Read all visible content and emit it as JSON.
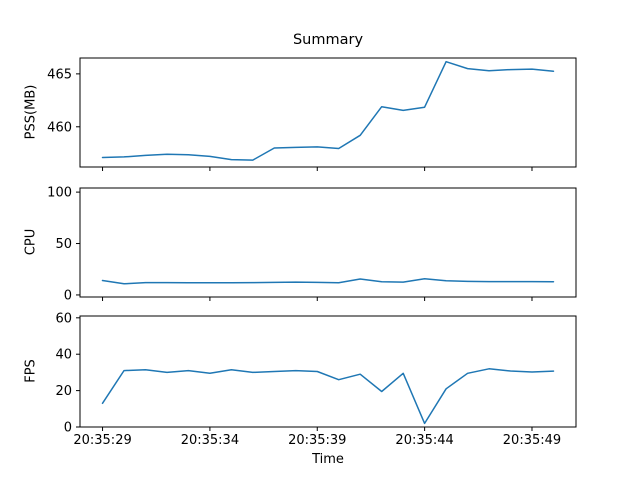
{
  "figure": {
    "title": "Summary",
    "xlabel": "Time"
  },
  "chart_data": {
    "type": "line",
    "title": "Summary",
    "xlabel": "Time",
    "line_color": "#1f77b4",
    "axes_color": "#000000",
    "background_color": "#ffffff",
    "x_unit": "seconds after 20:35:00, one sample per second",
    "x": [
      29,
      30,
      31,
      32,
      33,
      34,
      35,
      36,
      37,
      38,
      39,
      40,
      41,
      42,
      43,
      44,
      45,
      46,
      47,
      48,
      49,
      50
    ],
    "x_times": [
      "20:35:29",
      "20:35:30",
      "20:35:31",
      "20:35:32",
      "20:35:33",
      "20:35:34",
      "20:35:35",
      "20:35:36",
      "20:35:37",
      "20:35:38",
      "20:35:39",
      "20:35:40",
      "20:35:41",
      "20:35:42",
      "20:35:43",
      "20:35:44",
      "20:35:45",
      "20:35:46",
      "20:35:47",
      "20:35:48",
      "20:35:49",
      "20:35:50"
    ],
    "xlim": [
      27.95,
      51.05
    ],
    "x_tick_values": [
      29,
      34,
      39,
      44,
      49
    ],
    "x_tick_labels": [
      "20:35:29",
      "20:35:34",
      "20:35:39",
      "20:35:44",
      "20:35:49"
    ],
    "subplots": [
      {
        "name": "pss",
        "ylabel": "PSS(MB)",
        "ylim": [
          456.2,
          466.5
        ],
        "yticks": [
          460,
          465
        ],
        "values": [
          457.1,
          457.15,
          457.3,
          457.4,
          457.35,
          457.2,
          456.9,
          456.85,
          458.0,
          458.05,
          458.1,
          457.95,
          459.2,
          461.9,
          461.55,
          461.85,
          466.15,
          465.5,
          465.3,
          465.4,
          465.45,
          465.25
        ]
      },
      {
        "name": "cpu",
        "ylabel": "CPU",
        "ylim": [
          -2,
          104
        ],
        "yticks": [
          0,
          50,
          100
        ],
        "values": [
          14,
          10.8,
          12,
          12,
          11.8,
          11.8,
          11.8,
          12,
          12.2,
          12.5,
          12.2,
          11.8,
          15.5,
          12.8,
          12.5,
          15.8,
          13.8,
          13.2,
          13,
          13,
          13,
          12.8
        ]
      },
      {
        "name": "fps",
        "ylabel": "FPS",
        "ylim": [
          0,
          61
        ],
        "yticks": [
          0,
          20,
          40,
          60
        ],
        "values": [
          13,
          31,
          31.5,
          30,
          31,
          29.5,
          31.5,
          30,
          30.5,
          31,
          30.5,
          26,
          29,
          19.5,
          29.5,
          2,
          21,
          29.5,
          32,
          30.8,
          30.2,
          30.7
        ]
      }
    ]
  }
}
